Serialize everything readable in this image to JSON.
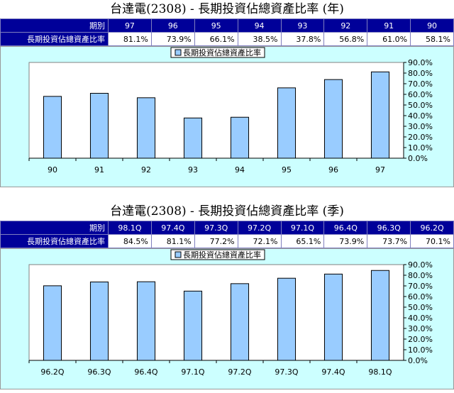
{
  "annual": {
    "title": "台達電(2308) - 長期投資佔總資產比率 (年)",
    "period_label": "期別",
    "ratio_label": "長期投資佔總資產比率",
    "periods": [
      "97",
      "96",
      "95",
      "94",
      "93",
      "92",
      "91",
      "90"
    ],
    "ratios": [
      "81.1%",
      "73.9%",
      "66.1%",
      "38.5%",
      "37.8%",
      "56.8%",
      "61.0%",
      "58.1%"
    ]
  },
  "quarterly": {
    "title": "台達電(2308) - 長期投資佔總資產比率 (季)",
    "period_label": "期別",
    "ratio_label": "長期投資佔總資產比率",
    "periods": [
      "98.1Q",
      "97.4Q",
      "97.3Q",
      "97.2Q",
      "97.1Q",
      "96.4Q",
      "96.3Q",
      "96.2Q"
    ],
    "ratios": [
      "84.5%",
      "81.1%",
      "77.2%",
      "72.1%",
      "65.1%",
      "73.9%",
      "73.7%",
      "70.1%"
    ]
  },
  "chart_data": [
    {
      "type": "bar",
      "categories": [
        "90",
        "91",
        "92",
        "93",
        "94",
        "95",
        "96",
        "97"
      ],
      "series": [
        {
          "name": "長期投資佔總資產比率",
          "values": [
            58.1,
            61.0,
            56.8,
            37.8,
            38.5,
            66.1,
            73.9,
            81.1
          ]
        }
      ],
      "ylim": [
        0,
        90
      ],
      "yticks": [
        "0.0%",
        "10.0%",
        "20.0%",
        "30.0%",
        "40.0%",
        "50.0%",
        "60.0%",
        "70.0%",
        "80.0%",
        "90.0%"
      ],
      "legend_position": "top-center",
      "grid": false
    },
    {
      "type": "bar",
      "categories": [
        "96.2Q",
        "96.3Q",
        "96.4Q",
        "97.1Q",
        "97.2Q",
        "97.3Q",
        "97.4Q",
        "98.1Q"
      ],
      "series": [
        {
          "name": "長期投資佔總資產比率",
          "values": [
            70.1,
            73.7,
            73.9,
            65.1,
            72.1,
            77.2,
            81.1,
            84.5
          ]
        }
      ],
      "ylim": [
        0,
        90
      ],
      "yticks": [
        "0.0%",
        "10.0%",
        "20.0%",
        "30.0%",
        "40.0%",
        "50.0%",
        "60.0%",
        "70.0%",
        "80.0%",
        "90.0%"
      ],
      "legend_position": "top-center",
      "grid": false
    }
  ],
  "colors": {
    "header_bg": "#000099",
    "chart_bg": "#ccffff",
    "bar_fill": "#99ccff",
    "bar_stroke": "#000000"
  }
}
